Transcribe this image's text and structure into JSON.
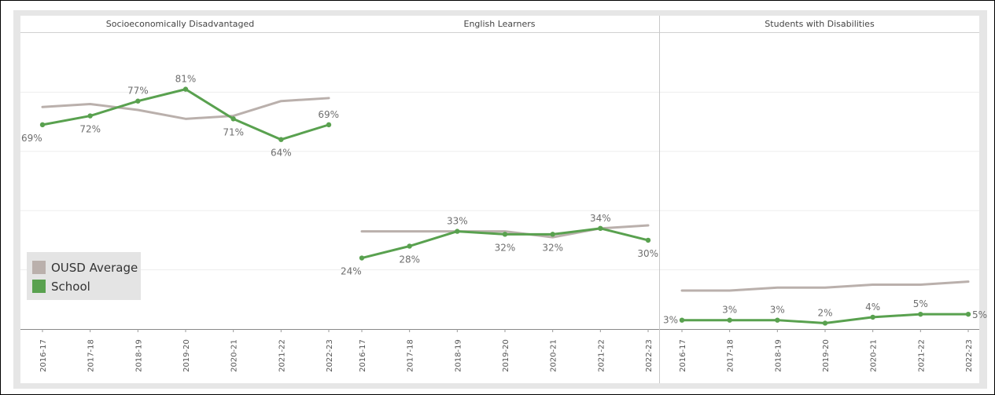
{
  "chart_data": {
    "type": "line",
    "categories": [
      "2016-17",
      "2017-18",
      "2018-19",
      "2019-20",
      "2020-21",
      "2021-22",
      "2022-23"
    ],
    "ylim": [
      0,
      100
    ],
    "legend": {
      "placement": "bottom-left",
      "entries": [
        {
          "name": "OUSD Average",
          "color": "#bab0ac"
        },
        {
          "name": "School",
          "color": "#59a14f"
        }
      ]
    },
    "panels": [
      {
        "title": "Socioeconomically Disadvantaged",
        "series": [
          {
            "name": "OUSD Average",
            "values": [
              75,
              76,
              74,
              71,
              72,
              77,
              78
            ]
          },
          {
            "name": "School",
            "values": [
              69,
              72,
              77,
              81,
              71,
              64,
              69
            ]
          }
        ],
        "labels": [
          "69%",
          "72%",
          "77%",
          "81%",
          "71%",
          "64%",
          "69%"
        ],
        "label_pos": [
          "below",
          "below",
          "above",
          "above",
          "below",
          "below",
          "above"
        ]
      },
      {
        "title": "English Learners",
        "series": [
          {
            "name": "OUSD Average",
            "values": [
              33,
              33,
              33,
              33,
              31,
              34,
              35
            ]
          },
          {
            "name": "School",
            "values": [
              24,
              28,
              33,
              32,
              32,
              34,
              30
            ]
          }
        ],
        "labels": [
          "24%",
          "28%",
          "33%",
          "32%",
          "32%",
          "34%",
          "30%"
        ],
        "label_pos": [
          "below",
          "below",
          "above",
          "below",
          "below",
          "above",
          "below"
        ]
      },
      {
        "title": "Students with Disabilities",
        "series": [
          {
            "name": "OUSD Average",
            "values": [
              13,
              13,
              14,
              14,
              15,
              15,
              16
            ]
          },
          {
            "name": "School",
            "values": [
              3,
              3,
              3,
              2,
              4,
              5,
              5
            ]
          }
        ],
        "labels": [
          "3%",
          "3%",
          "3%",
          "2%",
          "4%",
          "5%",
          "5%"
        ],
        "label_pos": [
          "left",
          "above",
          "above",
          "above",
          "above",
          "above",
          "right"
        ]
      }
    ]
  }
}
